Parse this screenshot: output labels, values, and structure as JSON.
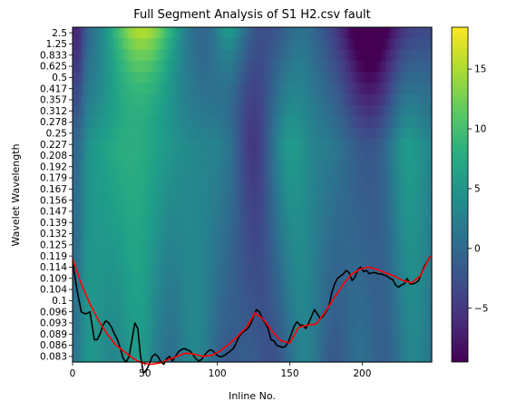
{
  "chart_data": {
    "type": "heatmap",
    "title": "Full Segment Analysis of S1 H2.csv fault",
    "xlabel": "Inline No.",
    "ylabel": "Wavelet Wavelength",
    "xlim": [
      0,
      248
    ],
    "x_ticks": [
      0,
      50,
      100,
      150,
      200
    ],
    "y_tick_labels": [
      "2.5",
      "1.25",
      "0.833",
      "0.625",
      "0.5",
      "0.417",
      "0.357",
      "0.312",
      "0.278",
      "0.25",
      "0.227",
      "0.208",
      "0.192",
      "0.179",
      "0.167",
      "0.156",
      "0.147",
      "0.139",
      "0.132",
      "0.125",
      "0.119",
      "0.114",
      "0.109",
      "0.104",
      "0.1",
      "0.096",
      "0.093",
      "0.089",
      "0.086",
      "0.083"
    ],
    "colorbar": {
      "colormap": "viridis",
      "range": [
        -9.5,
        18.5
      ],
      "ticks": [
        -5,
        0,
        5,
        10,
        15
      ]
    },
    "series": [
      {
        "color": "#000000",
        "x": [
          0,
          3,
          6,
          9,
          12,
          15,
          17,
          19,
          21,
          23,
          25,
          27,
          29,
          31,
          33,
          35,
          37,
          39,
          41,
          43,
          45,
          47,
          49,
          51,
          53,
          55,
          57,
          59,
          61,
          63,
          65,
          67,
          69,
          71,
          73,
          75,
          77,
          79,
          81,
          83,
          85,
          87,
          89,
          91,
          93,
          95,
          97,
          99,
          101,
          103,
          105,
          107,
          109,
          111,
          113,
          115,
          117,
          119,
          121,
          123,
          125,
          127,
          129,
          131,
          133,
          135,
          137,
          139,
          141,
          143,
          145,
          147,
          149,
          151,
          153,
          155,
          157,
          159,
          161,
          163,
          165,
          167,
          169,
          171,
          173,
          175,
          177,
          179,
          181,
          183,
          185,
          187,
          189,
          191,
          193,
          195,
          197,
          199,
          201,
          203,
          205,
          207,
          209,
          211,
          213,
          215,
          217,
          219,
          221,
          223,
          225,
          227,
          229,
          231,
          233,
          235,
          237,
          239,
          241,
          243,
          245,
          247
        ],
        "y": [
          20.5,
          23.0,
          25.0,
          25.2,
          25.0,
          27.5,
          27.5,
          27.0,
          26.2,
          25.8,
          26.0,
          26.4,
          27.0,
          27.5,
          28.3,
          29.2,
          29.5,
          29.0,
          27.5,
          26.0,
          26.5,
          29.0,
          30.5,
          30.2,
          29.7,
          29.0,
          28.8,
          29.0,
          29.5,
          29.7,
          29.2,
          29.0,
          29.4,
          29.0,
          28.6,
          28.4,
          28.3,
          28.4,
          28.5,
          28.8,
          29.2,
          29.4,
          29.3,
          28.9,
          28.6,
          28.4,
          28.5,
          28.8,
          29.0,
          29.0,
          28.9,
          28.7,
          28.5,
          28.3,
          27.8,
          27.2,
          26.9,
          26.7,
          26.5,
          26.1,
          25.4,
          24.8,
          25.0,
          25.6,
          26.0,
          26.5,
          27.5,
          27.6,
          28.0,
          28.1,
          28.2,
          28.1,
          27.7,
          27.0,
          26.3,
          25.9,
          26.2,
          26.2,
          26.5,
          26.0,
          25.4,
          24.8,
          25.2,
          25.6,
          25.4,
          25.0,
          24.5,
          23.3,
          22.5,
          22.0,
          21.8,
          21.6,
          21.3,
          21.5,
          22.2,
          21.9,
          21.2,
          21.0,
          21.4,
          21.3,
          21.6,
          21.5,
          21.5,
          21.6,
          21.6,
          21.7,
          21.8,
          22.0,
          22.1,
          22.6,
          22.8,
          22.6,
          22.5,
          22.0,
          22.5,
          22.5,
          22.4,
          22.2,
          21.5,
          20.9,
          20.5,
          20.0
        ]
      },
      {
        "color": "#ff0000",
        "x": [
          0,
          6,
          12,
          18,
          24,
          30,
          36,
          42,
          48,
          54,
          60,
          66,
          72,
          78,
          84,
          90,
          96,
          102,
          108,
          114,
          120,
          126,
          132,
          138,
          144,
          150,
          156,
          162,
          168,
          174,
          180,
          186,
          192,
          198,
          204,
          210,
          216,
          222,
          228,
          234,
          240,
          247
        ],
        "y": [
          20.3,
          22.5,
          24.3,
          25.8,
          27.0,
          28.0,
          28.6,
          29.2,
          29.6,
          29.7,
          29.6,
          29.3,
          29.0,
          28.7,
          28.8,
          29.0,
          28.9,
          28.5,
          27.9,
          27.2,
          26.4,
          25.1,
          25.7,
          26.8,
          27.6,
          27.8,
          26.4,
          26.2,
          26.1,
          25.1,
          23.9,
          22.7,
          21.7,
          21.2,
          21.0,
          21.2,
          21.5,
          21.8,
          22.2,
          22.4,
          21.8,
          20.0
        ]
      }
    ]
  }
}
